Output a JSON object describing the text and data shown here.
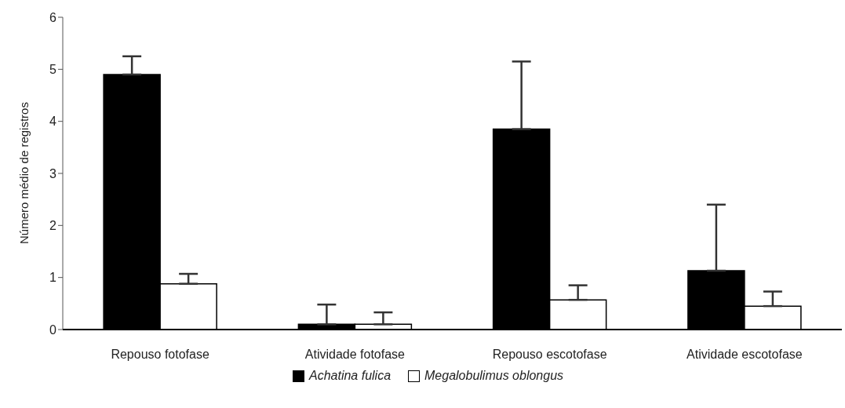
{
  "chart_data": {
    "type": "bar",
    "ylabel": "Número médio de registros",
    "categories": [
      "Repouso fotofase",
      "Atividade fotofase",
      "Repouso escotofase",
      "Atividade escotofase"
    ],
    "series": [
      {
        "name": "Achatina fulica",
        "color": "#000000",
        "values": [
          4.9,
          0.1,
          3.85,
          1.13
        ],
        "errors": [
          [
            4.9,
            5.25
          ],
          [
            0.1,
            0.48
          ],
          [
            3.85,
            5.15
          ],
          [
            1.13,
            2.4
          ]
        ]
      },
      {
        "name": "Megalobulimus oblongus",
        "color": "#ffffff",
        "values": [
          0.88,
          0.1,
          0.57,
          0.45
        ],
        "errors": [
          [
            0.88,
            1.07
          ],
          [
            0.1,
            0.33
          ],
          [
            0.57,
            0.85
          ],
          [
            0.45,
            0.73
          ]
        ]
      }
    ],
    "ylim": [
      0,
      6
    ],
    "yticks": [
      0,
      1,
      2,
      3,
      4,
      5,
      6
    ],
    "grid": false,
    "legend": "bottom"
  }
}
